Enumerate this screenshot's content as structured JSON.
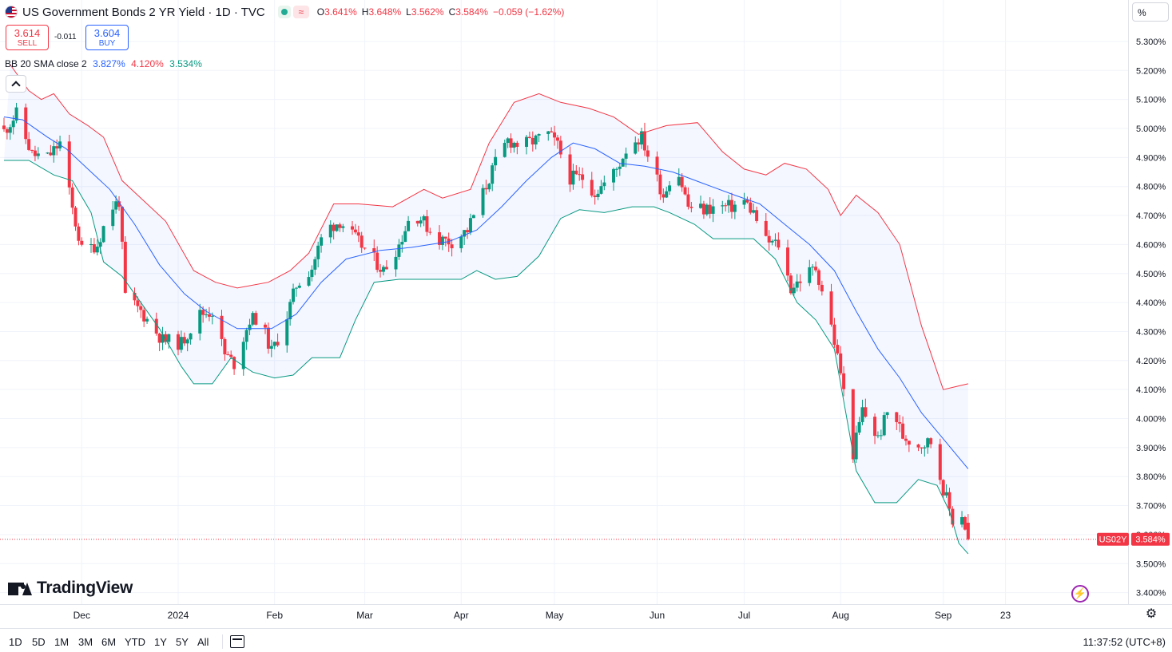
{
  "header": {
    "title": "US Government Bonds 2 YR Yield · 1D · TVC",
    "ohlc": {
      "o_label": "O",
      "o": "3.641%",
      "h_label": "H",
      "h": "3.648%",
      "l_label": "L",
      "l": "3.562%",
      "c_label": "C",
      "c": "3.584%",
      "change": "−0.059 (−1.62%)"
    },
    "market_icon": "market-open-dot-icon",
    "wave_icon": "delayed-data-wave-icon",
    "wave_glyph": "≈",
    "flag_icon": "us-flag-icon"
  },
  "trade": {
    "sell_price": "3.614",
    "sell_label": "SELL",
    "spread": "-0.011",
    "buy_price": "3.604",
    "buy_label": "BUY"
  },
  "indicator": {
    "name": "BB 20 SMA close 2",
    "basis": "3.827%",
    "upper": "4.120%",
    "lower": "3.534%"
  },
  "price_scale": {
    "unit": "%",
    "last_symbol": "US02Y",
    "last_value": "3.584%"
  },
  "brand": {
    "name": "TradingView"
  },
  "toolbar": {
    "ranges": [
      "1D",
      "5D",
      "1M",
      "3M",
      "6M",
      "YTD",
      "1Y",
      "5Y",
      "All"
    ],
    "clock": "11:37:52 (UTC+8)"
  },
  "colors": {
    "up": "#089981",
    "down": "#f23645",
    "basis": "#2962ff",
    "band_fill": "#2962ff",
    "last_price": "#f23645"
  },
  "chart_data": {
    "type": "candlestick",
    "title": "US Government Bonds 2 YR Yield · 1D · TVC",
    "y_unit": "%",
    "ylim": [
      3.375,
      5.37
    ],
    "y_ticks": [
      5.3,
      5.2,
      5.1,
      5.0,
      4.9,
      4.8,
      4.7,
      4.6,
      4.5,
      4.4,
      4.3,
      4.2,
      4.1,
      4.0,
      3.9,
      3.8,
      3.7,
      3.6,
      3.5,
      3.4
    ],
    "y_tick_labels": [
      "5.300%",
      "5.200%",
      "5.100%",
      "5.000%",
      "4.900%",
      "4.800%",
      "4.700%",
      "4.600%",
      "4.500%",
      "4.400%",
      "4.300%",
      "4.200%",
      "4.100%",
      "4.000%",
      "3.900%",
      "3.800%",
      "3.700%",
      "3.600%",
      "3.500%",
      "3.400%"
    ],
    "x_labels": [
      {
        "label": "Dec",
        "date": "2023-12-01"
      },
      {
        "label": "2024",
        "date": "2024-01-01"
      },
      {
        "label": "Feb",
        "date": "2024-02-01"
      },
      {
        "label": "Mar",
        "date": "2024-03-01"
      },
      {
        "label": "Apr",
        "date": "2024-04-01"
      },
      {
        "label": "May",
        "date": "2024-05-01"
      },
      {
        "label": "Jun",
        "date": "2024-06-03"
      },
      {
        "label": "Jul",
        "date": "2024-07-01"
      },
      {
        "label": "Aug",
        "date": "2024-08-01"
      },
      {
        "label": "Sep",
        "date": "2024-09-03"
      },
      {
        "label": "23",
        "date": "2024-09-23"
      }
    ],
    "x_range": [
      "2023-11-06",
      "2024-09-27"
    ],
    "last_date": "2024-09-11",
    "indicator": "Bollinger Bands (20, SMA, close, 2)",
    "series": [
      {
        "name": "close",
        "points": [
          [
            "2023-11-06",
            4.99
          ],
          [
            "2023-11-10",
            5.05
          ],
          [
            "2023-11-15",
            4.91
          ],
          [
            "2023-11-20",
            4.9
          ],
          [
            "2023-11-24",
            4.95
          ],
          [
            "2023-11-28",
            4.72
          ],
          [
            "2023-12-01",
            4.58
          ],
          [
            "2023-12-06",
            4.6
          ],
          [
            "2023-12-10",
            4.72
          ],
          [
            "2023-12-13",
            4.75
          ],
          [
            "2023-12-15",
            4.42
          ],
          [
            "2023-12-20",
            4.37
          ],
          [
            "2023-12-27",
            4.27
          ],
          [
            "2024-01-02",
            4.26
          ],
          [
            "2024-01-08",
            4.36
          ],
          [
            "2024-01-12",
            4.37
          ],
          [
            "2024-01-16",
            4.22
          ],
          [
            "2024-01-19",
            4.19
          ],
          [
            "2024-01-24",
            4.34
          ],
          [
            "2024-01-27",
            4.35
          ],
          [
            "2024-01-31",
            4.23
          ],
          [
            "2024-02-04",
            4.32
          ],
          [
            "2024-02-08",
            4.46
          ],
          [
            "2024-02-13",
            4.52
          ],
          [
            "2024-02-17",
            4.65
          ],
          [
            "2024-02-22",
            4.68
          ],
          [
            "2024-02-27",
            4.62
          ],
          [
            "2024-03-03",
            4.56
          ],
          [
            "2024-03-07",
            4.51
          ],
          [
            "2024-03-12",
            4.6
          ],
          [
            "2024-03-16",
            4.71
          ],
          [
            "2024-03-19",
            4.69
          ],
          [
            "2024-03-24",
            4.62
          ],
          [
            "2024-03-29",
            4.61
          ],
          [
            "2024-04-03",
            4.65
          ],
          [
            "2024-04-07",
            4.75
          ],
          [
            "2024-04-12",
            4.88
          ],
          [
            "2024-04-16",
            4.96
          ],
          [
            "2024-04-20",
            4.94
          ],
          [
            "2024-04-25",
            4.96
          ],
          [
            "2024-04-29",
            4.98
          ],
          [
            "2024-05-02",
            4.94
          ],
          [
            "2024-05-06",
            4.83
          ],
          [
            "2024-05-10",
            4.83
          ],
          [
            "2024-05-14",
            4.78
          ],
          [
            "2024-05-18",
            4.82
          ],
          [
            "2024-05-21",
            4.86
          ],
          [
            "2024-05-25",
            4.95
          ],
          [
            "2024-05-29",
            4.97
          ],
          [
            "2024-06-01",
            4.88
          ],
          [
            "2024-06-05",
            4.77
          ],
          [
            "2024-06-09",
            4.88
          ],
          [
            "2024-06-13",
            4.73
          ],
          [
            "2024-06-18",
            4.72
          ],
          [
            "2024-06-22",
            4.73
          ],
          [
            "2024-06-27",
            4.73
          ],
          [
            "2024-07-01",
            4.75
          ],
          [
            "2024-07-04",
            4.71
          ],
          [
            "2024-07-08",
            4.61
          ],
          [
            "2024-07-12",
            4.6
          ],
          [
            "2024-07-16",
            4.45
          ],
          [
            "2024-07-20",
            4.49
          ],
          [
            "2024-07-24",
            4.52
          ],
          [
            "2024-07-28",
            4.37
          ],
          [
            "2024-08-01",
            4.16
          ],
          [
            "2024-08-05",
            3.88
          ],
          [
            "2024-08-08",
            4.03
          ],
          [
            "2024-08-13",
            3.93
          ],
          [
            "2024-08-17",
            4.05
          ],
          [
            "2024-08-21",
            3.94
          ],
          [
            "2024-08-26",
            3.91
          ],
          [
            "2024-08-30",
            3.92
          ],
          [
            "2024-09-03",
            3.76
          ],
          [
            "2024-09-06",
            3.65
          ],
          [
            "2024-09-09",
            3.67
          ],
          [
            "2024-09-11",
            3.584
          ]
        ]
      },
      {
        "name": "upper",
        "points": [
          [
            "2023-11-08",
            5.22
          ],
          [
            "2023-11-14",
            5.13
          ],
          [
            "2023-11-18",
            5.1
          ],
          [
            "2023-11-22",
            5.12
          ],
          [
            "2023-11-27",
            5.05
          ],
          [
            "2023-12-03",
            5.01
          ],
          [
            "2023-12-08",
            4.97
          ],
          [
            "2023-12-14",
            4.82
          ],
          [
            "2023-12-20",
            4.76
          ],
          [
            "2023-12-28",
            4.68
          ],
          [
            "2024-01-06",
            4.51
          ],
          [
            "2024-01-13",
            4.47
          ],
          [
            "2024-01-20",
            4.45
          ],
          [
            "2024-01-30",
            4.47
          ],
          [
            "2024-02-06",
            4.51
          ],
          [
            "2024-02-12",
            4.57
          ],
          [
            "2024-02-20",
            4.74
          ],
          [
            "2024-02-28",
            4.74
          ],
          [
            "2024-03-10",
            4.73
          ],
          [
            "2024-03-20",
            4.79
          ],
          [
            "2024-03-26",
            4.76
          ],
          [
            "2024-04-04",
            4.79
          ],
          [
            "2024-04-10",
            4.95
          ],
          [
            "2024-04-18",
            5.09
          ],
          [
            "2024-04-26",
            5.12
          ],
          [
            "2024-05-03",
            5.09
          ],
          [
            "2024-05-12",
            5.07
          ],
          [
            "2024-05-20",
            5.04
          ],
          [
            "2024-05-28",
            4.98
          ],
          [
            "2024-06-06",
            5.01
          ],
          [
            "2024-06-16",
            5.02
          ],
          [
            "2024-06-24",
            4.92
          ],
          [
            "2024-07-01",
            4.86
          ],
          [
            "2024-07-08",
            4.84
          ],
          [
            "2024-07-14",
            4.88
          ],
          [
            "2024-07-21",
            4.86
          ],
          [
            "2024-07-28",
            4.79
          ],
          [
            "2024-08-01",
            4.7
          ],
          [
            "2024-08-06",
            4.77
          ],
          [
            "2024-08-13",
            4.71
          ],
          [
            "2024-08-20",
            4.6
          ],
          [
            "2024-08-27",
            4.32
          ],
          [
            "2024-09-03",
            4.1
          ],
          [
            "2024-09-07",
            4.11
          ],
          [
            "2024-09-11",
            4.12
          ]
        ]
      },
      {
        "name": "basis",
        "points": [
          [
            "2023-11-06",
            5.04
          ],
          [
            "2023-11-12",
            5.03
          ],
          [
            "2023-11-20",
            4.97
          ],
          [
            "2023-11-26",
            4.93
          ],
          [
            "2023-12-03",
            4.86
          ],
          [
            "2023-12-10",
            4.79
          ],
          [
            "2023-12-18",
            4.67
          ],
          [
            "2023-12-26",
            4.53
          ],
          [
            "2024-01-03",
            4.43
          ],
          [
            "2024-01-10",
            4.37
          ],
          [
            "2024-01-20",
            4.31
          ],
          [
            "2024-01-31",
            4.31
          ],
          [
            "2024-02-08",
            4.36
          ],
          [
            "2024-02-16",
            4.47
          ],
          [
            "2024-02-24",
            4.55
          ],
          [
            "2024-03-06",
            4.58
          ],
          [
            "2024-03-16",
            4.59
          ],
          [
            "2024-03-28",
            4.61
          ],
          [
            "2024-04-06",
            4.65
          ],
          [
            "2024-04-14",
            4.73
          ],
          [
            "2024-04-22",
            4.82
          ],
          [
            "2024-04-30",
            4.9
          ],
          [
            "2024-05-07",
            4.95
          ],
          [
            "2024-05-14",
            4.93
          ],
          [
            "2024-05-22",
            4.88
          ],
          [
            "2024-05-30",
            4.87
          ],
          [
            "2024-06-08",
            4.85
          ],
          [
            "2024-06-18",
            4.81
          ],
          [
            "2024-06-28",
            4.77
          ],
          [
            "2024-07-06",
            4.74
          ],
          [
            "2024-07-14",
            4.67
          ],
          [
            "2024-07-22",
            4.6
          ],
          [
            "2024-07-30",
            4.51
          ],
          [
            "2024-08-06",
            4.37
          ],
          [
            "2024-08-13",
            4.24
          ],
          [
            "2024-08-20",
            4.14
          ],
          [
            "2024-08-27",
            4.02
          ],
          [
            "2024-09-03",
            3.93
          ],
          [
            "2024-09-11",
            3.827
          ]
        ]
      },
      {
        "name": "lower",
        "points": [
          [
            "2023-11-06",
            4.89
          ],
          [
            "2023-11-14",
            4.89
          ],
          [
            "2023-11-22",
            4.84
          ],
          [
            "2023-11-28",
            4.82
          ],
          [
            "2023-12-04",
            4.71
          ],
          [
            "2023-12-08",
            4.54
          ],
          [
            "2023-12-14",
            4.49
          ],
          [
            "2023-12-20",
            4.4
          ],
          [
            "2023-12-26",
            4.31
          ],
          [
            "2024-01-02",
            4.18
          ],
          [
            "2024-01-06",
            4.12
          ],
          [
            "2024-01-12",
            4.12
          ],
          [
            "2024-01-18",
            4.21
          ],
          [
            "2024-01-25",
            4.16
          ],
          [
            "2024-02-01",
            4.14
          ],
          [
            "2024-02-07",
            4.15
          ],
          [
            "2024-02-13",
            4.21
          ],
          [
            "2024-02-22",
            4.21
          ],
          [
            "2024-02-27",
            4.34
          ],
          [
            "2024-03-04",
            4.47
          ],
          [
            "2024-03-12",
            4.48
          ],
          [
            "2024-03-24",
            4.48
          ],
          [
            "2024-04-01",
            4.48
          ],
          [
            "2024-04-06",
            4.51
          ],
          [
            "2024-04-12",
            4.48
          ],
          [
            "2024-04-19",
            4.49
          ],
          [
            "2024-04-26",
            4.56
          ],
          [
            "2024-05-03",
            4.69
          ],
          [
            "2024-05-09",
            4.72
          ],
          [
            "2024-05-17",
            4.71
          ],
          [
            "2024-05-26",
            4.73
          ],
          [
            "2024-06-02",
            4.73
          ],
          [
            "2024-06-07",
            4.71
          ],
          [
            "2024-06-15",
            4.67
          ],
          [
            "2024-06-21",
            4.62
          ],
          [
            "2024-06-28",
            4.62
          ],
          [
            "2024-07-04",
            4.62
          ],
          [
            "2024-07-11",
            4.55
          ],
          [
            "2024-07-18",
            4.4
          ],
          [
            "2024-07-24",
            4.34
          ],
          [
            "2024-07-30",
            4.24
          ],
          [
            "2024-08-06",
            3.82
          ],
          [
            "2024-08-12",
            3.71
          ],
          [
            "2024-08-19",
            3.71
          ],
          [
            "2024-08-26",
            3.79
          ],
          [
            "2024-09-01",
            3.77
          ],
          [
            "2024-09-05",
            3.68
          ],
          [
            "2024-09-08",
            3.57
          ],
          [
            "2024-09-11",
            3.534
          ]
        ]
      }
    ]
  }
}
